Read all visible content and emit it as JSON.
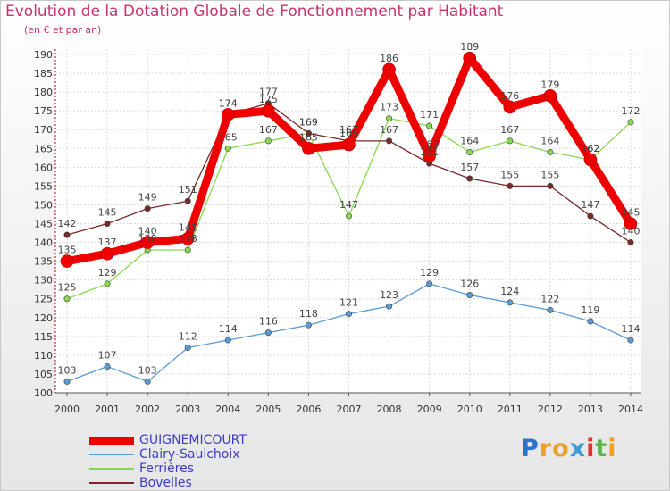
{
  "title": "Evolution de la Dotation Globale de Fonctionnement par Habitant",
  "subtitle": "(en € et par an)",
  "logo": {
    "text": [
      "P",
      "r",
      "o",
      "x",
      "i",
      "t",
      "i"
    ],
    "colors": [
      "#2a73c8",
      "#f0a020",
      "#e8a028",
      "#3c9ad8",
      "#e23030",
      "#58b848",
      "#f0a020"
    ]
  },
  "chart_data": {
    "type": "line",
    "x": [
      "2000",
      "2001",
      "2002",
      "2003",
      "2004",
      "2005",
      "2006",
      "2007",
      "2008",
      "2009",
      "2010",
      "2011",
      "2012",
      "2013",
      "2014"
    ],
    "ylim": [
      100,
      190
    ],
    "yticks": [
      100,
      105,
      110,
      115,
      120,
      125,
      130,
      135,
      140,
      145,
      150,
      155,
      160,
      165,
      170,
      175,
      180,
      185,
      190
    ],
    "grid": true,
    "legend_position": "bottom-left",
    "series": [
      {
        "name": "GUIGNEMICOURT",
        "color": "#ee0000",
        "values": [
          135,
          137,
          140,
          141,
          174,
          175,
          165,
          166,
          186,
          163,
          189,
          176,
          179,
          162,
          145
        ]
      },
      {
        "name": "Clairy-Saulchoix",
        "color": "#5b9bd5",
        "values": [
          103,
          107,
          103,
          112,
          114,
          116,
          118,
          121,
          123,
          129,
          126,
          124,
          122,
          119,
          114
        ]
      },
      {
        "name": "Ferrières",
        "color": "#88d850",
        "values": [
          125,
          129,
          138,
          138,
          165,
          167,
          169,
          147,
          173,
          171,
          164,
          167,
          164,
          162,
          172
        ]
      },
      {
        "name": "Bovelles",
        "color": "#7a2828",
        "values": [
          142,
          145,
          149,
          151,
          174,
          177,
          169,
          167,
          167,
          161,
          157,
          155,
          155,
          147,
          140
        ]
      }
    ]
  }
}
